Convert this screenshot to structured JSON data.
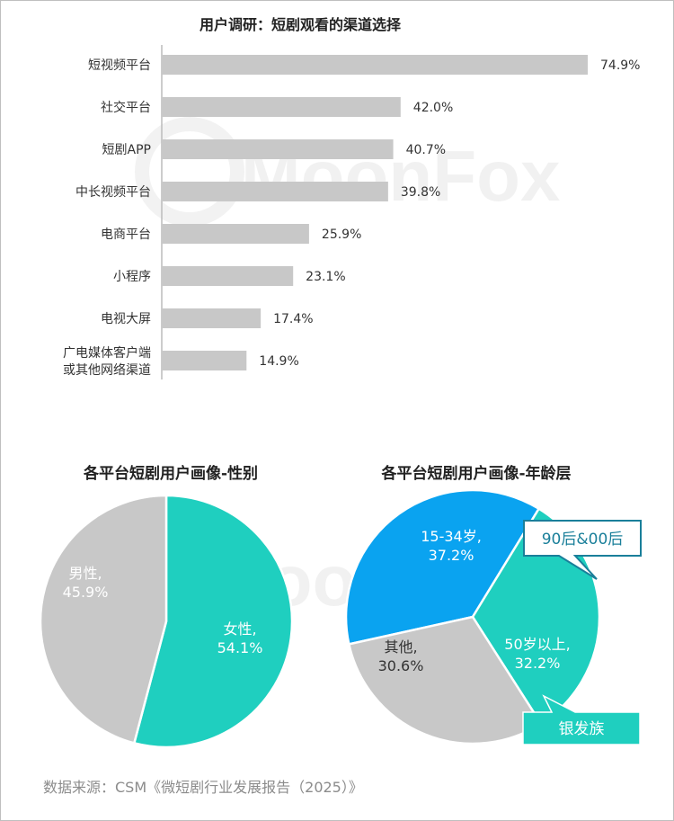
{
  "watermark": "MoonFox",
  "colors": {
    "bar": "#c8c8c8",
    "teal": "#1fcfbf",
    "gray": "#c8c8c8",
    "blue": "#0aa3f0",
    "axis": "#bbbbbb"
  },
  "source": "数据来源：CSM《微短剧行业发展报告（2025）》",
  "chart_data": [
    {
      "type": "bar",
      "orientation": "horizontal",
      "title": "用户调研：短剧观看的渠道选择",
      "categories": [
        "短视频平台",
        "社交平台",
        "短剧APP",
        "中长视频平台",
        "电商平台",
        "小程序",
        "电视大屏",
        "广电媒体客户端\n或其他网络渠道"
      ],
      "values": [
        74.9,
        42.0,
        40.7,
        39.8,
        25.9,
        23.1,
        17.4,
        14.9
      ],
      "value_labels": [
        "74.9%",
        "42.0%",
        "40.7%",
        "39.8%",
        "25.9%",
        "23.1%",
        "17.4%",
        "14.9%"
      ],
      "xlim": [
        0,
        74.9
      ]
    },
    {
      "type": "pie",
      "title": "各平台短剧用户画像-性别",
      "slices": [
        {
          "label": "女性,",
          "value": 54.1,
          "value_label": "54.1%",
          "color": "#1fcfbf"
        },
        {
          "label": "男性,",
          "value": 45.9,
          "value_label": "45.9%",
          "color": "#c8c8c8"
        }
      ]
    },
    {
      "type": "pie",
      "title": "各平台短剧用户画像-年龄层",
      "slices": [
        {
          "label": "15-34岁,",
          "value": 37.2,
          "value_label": "37.2%",
          "color": "#0aa3f0"
        },
        {
          "label": "50岁以上,",
          "value": 32.2,
          "value_label": "32.2%",
          "color": "#1fcfbf"
        },
        {
          "label": "其他,",
          "value": 30.6,
          "value_label": "30.6%",
          "color": "#c8c8c8"
        }
      ],
      "annotations": [
        "90后&00后",
        "银发族"
      ]
    }
  ]
}
